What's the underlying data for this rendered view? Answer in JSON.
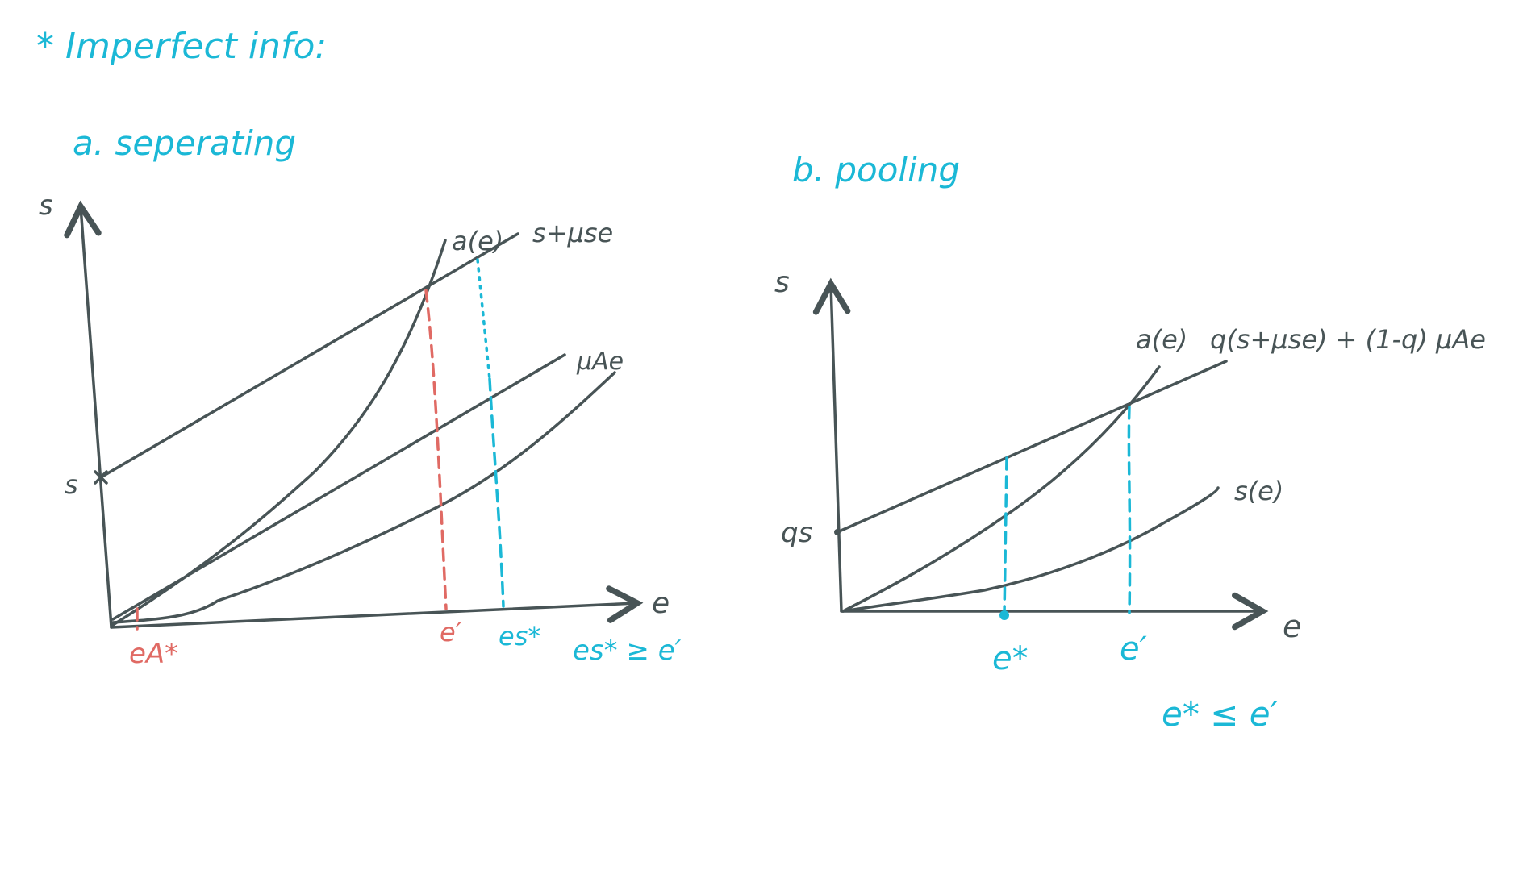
{
  "header": {
    "title": "* Imperfect info:"
  },
  "panel_a": {
    "title": "a. seperating",
    "y_axis_label": "s",
    "x_axis_label": "e",
    "intercept_label": "s",
    "curve_a_label": "a(e)",
    "line_top_label": "s+μse",
    "line_mid_label": "μAe",
    "eA_label": "eA*",
    "e_prime_label": "e′",
    "es_label": "es*",
    "condition": "es* ≥ e′"
  },
  "panel_b": {
    "title": "b. pooling",
    "y_axis_label": "s",
    "x_axis_label": "e",
    "intercept_label": "qs",
    "curve_a_label": "a(e)",
    "line_label": "q(s+μse) + (1-q) μAe",
    "curve_s_label": "s(e)",
    "e_star_label": "e*",
    "e_prime_label": "e′",
    "condition": "e* ≤ e′"
  },
  "colors": {
    "ink": "#485456",
    "accent": "#1bb8d6",
    "highlight": "#e06a64"
  }
}
